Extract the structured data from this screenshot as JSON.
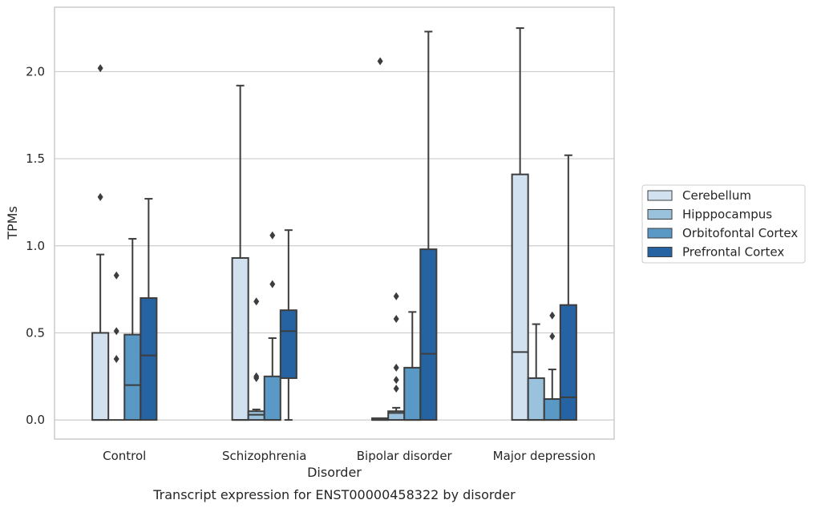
{
  "chart_data": {
    "type": "boxplot",
    "title": "",
    "caption": "Transcript expression for ENST00000458322 by disorder",
    "xlabel": "Disorder",
    "ylabel": "TPMs",
    "ylim": [
      -0.11,
      2.37
    ],
    "yticks": [
      "0.0",
      "0.5",
      "1.0",
      "1.5",
      "2.0"
    ],
    "grid": "horizontal",
    "legend_position": "right",
    "categories": [
      "Control",
      "Schizophrenia",
      "Bipolar disorder",
      "Major depression"
    ],
    "series": [
      {
        "name": "Cerebellum",
        "color": "#d2e1f0",
        "boxes": [
          {
            "q1": 0.0,
            "median": 0.0,
            "q3": 0.5,
            "whislo": 0.0,
            "whishi": 0.95,
            "fliers": [
              1.28,
              2.02
            ]
          },
          {
            "q1": 0.0,
            "median": 0.0,
            "q3": 0.93,
            "whislo": 0.0,
            "whishi": 1.92,
            "fliers": []
          },
          {
            "q1": 0.0,
            "median": 0.0,
            "q3": 0.01,
            "whislo": 0.0,
            "whishi": 0.01,
            "fliers": [
              2.06
            ]
          },
          {
            "q1": 0.0,
            "median": 0.39,
            "q3": 1.41,
            "whislo": 0.0,
            "whishi": 2.25,
            "fliers": []
          }
        ]
      },
      {
        "name": "Hipppocampus",
        "color": "#9ac2dc",
        "boxes": [
          {
            "q1": 0.0,
            "median": 0.0,
            "q3": 0.0,
            "whislo": 0.0,
            "whishi": 0.0,
            "fliers": [
              0.35,
              0.51,
              0.83
            ]
          },
          {
            "q1": 0.0,
            "median": 0.03,
            "q3": 0.05,
            "whislo": 0.0,
            "whishi": 0.06,
            "fliers": [
              0.24,
              0.25,
              0.68
            ]
          },
          {
            "q1": 0.0,
            "median": 0.04,
            "q3": 0.05,
            "whislo": 0.0,
            "whishi": 0.07,
            "fliers": [
              0.18,
              0.23,
              0.3,
              0.58,
              0.71
            ]
          },
          {
            "q1": 0.0,
            "median": 0.0,
            "q3": 0.24,
            "whislo": 0.0,
            "whishi": 0.55,
            "fliers": []
          }
        ]
      },
      {
        "name": "Orbitofontal Cortex",
        "color": "#5a98c6",
        "boxes": [
          {
            "q1": 0.0,
            "median": 0.2,
            "q3": 0.49,
            "whislo": 0.0,
            "whishi": 1.04,
            "fliers": []
          },
          {
            "q1": 0.0,
            "median": 0.0,
            "q3": 0.25,
            "whislo": 0.0,
            "whishi": 0.47,
            "fliers": [
              0.78,
              1.06
            ]
          },
          {
            "q1": 0.0,
            "median": 0.0,
            "q3": 0.3,
            "whislo": 0.0,
            "whishi": 0.62,
            "fliers": []
          },
          {
            "q1": 0.0,
            "median": 0.0,
            "q3": 0.12,
            "whislo": 0.0,
            "whishi": 0.29,
            "fliers": [
              0.48,
              0.6
            ]
          }
        ]
      },
      {
        "name": "Prefrontal Cortex",
        "color": "#2663a3",
        "boxes": [
          {
            "q1": 0.0,
            "median": 0.37,
            "q3": 0.7,
            "whislo": 0.0,
            "whishi": 1.27,
            "fliers": []
          },
          {
            "q1": 0.24,
            "median": 0.51,
            "q3": 0.63,
            "whislo": 0.0,
            "whishi": 1.09,
            "fliers": []
          },
          {
            "q1": 0.0,
            "median": 0.38,
            "q3": 0.98,
            "whislo": 0.0,
            "whishi": 2.23,
            "fliers": []
          },
          {
            "q1": 0.0,
            "median": 0.13,
            "q3": 0.66,
            "whislo": 0.0,
            "whishi": 1.52,
            "fliers": []
          }
        ]
      }
    ]
  }
}
